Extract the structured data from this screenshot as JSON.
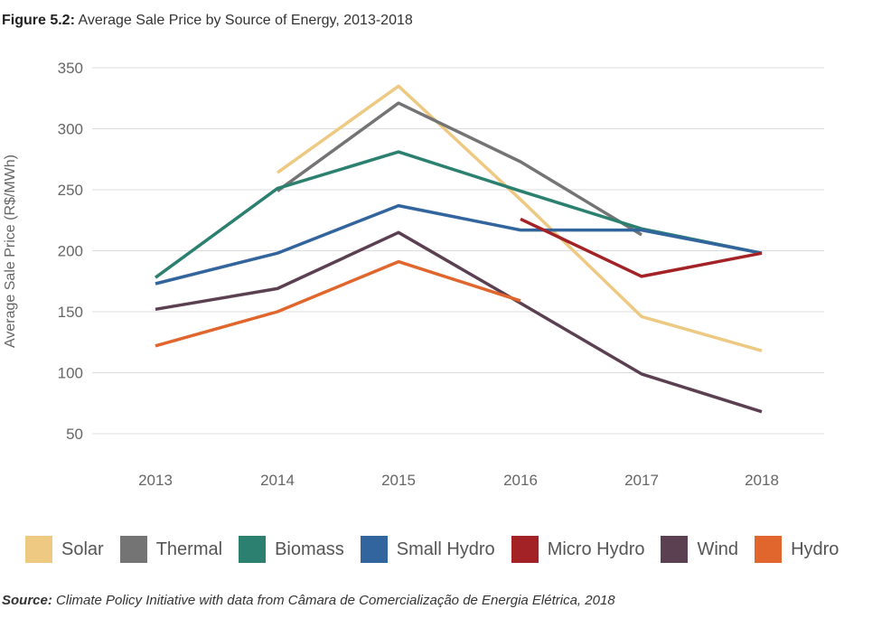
{
  "header": {
    "figure_label": "Figure 5.2:",
    "title": " Average Sale Price by Source of Energy, 2013-2018"
  },
  "chart_data": {
    "type": "line",
    "title": "Average Sale Price by Source of Energy, 2013-2018",
    "ylabel": "Average Sale Price (R$/MWh)",
    "xlabel": "",
    "categories": [
      "2013",
      "2014",
      "2015",
      "2016",
      "2017",
      "2018"
    ],
    "yticks": [
      "350",
      "300",
      "250",
      "200",
      "150",
      "100",
      "50"
    ],
    "ylim": [
      50,
      350
    ],
    "grid": "horizontal",
    "legend": "bottom",
    "series": [
      {
        "name": "Solar",
        "color": "#EDC982",
        "values": [
          null,
          264,
          335,
          242,
          146,
          118
        ]
      },
      {
        "name": "Thermal",
        "color": "#747474",
        "values": [
          null,
          249,
          321,
          273,
          213,
          null
        ]
      },
      {
        "name": "Biomass",
        "color": "#2B8070",
        "values": [
          178,
          251,
          281,
          249,
          218,
          198
        ]
      },
      {
        "name": "Small Hydro",
        "color": "#32659E",
        "values": [
          173,
          198,
          237,
          217,
          217,
          198
        ]
      },
      {
        "name": "Micro Hydro",
        "color": "#A32226",
        "values": [
          null,
          null,
          null,
          226,
          179,
          198
        ]
      },
      {
        "name": "Wind",
        "color": "#5B4052",
        "values": [
          152,
          169,
          215,
          157,
          99,
          68
        ]
      },
      {
        "name": "Hydro",
        "color": "#E0662D",
        "values": [
          122,
          150,
          191,
          159,
          null,
          null
        ]
      }
    ]
  },
  "footer": {
    "source_label": "Source:",
    "source_text": " Climate Policy Initiative with data from Câmara de Comercialização de Energia Elétrica, 2018"
  }
}
